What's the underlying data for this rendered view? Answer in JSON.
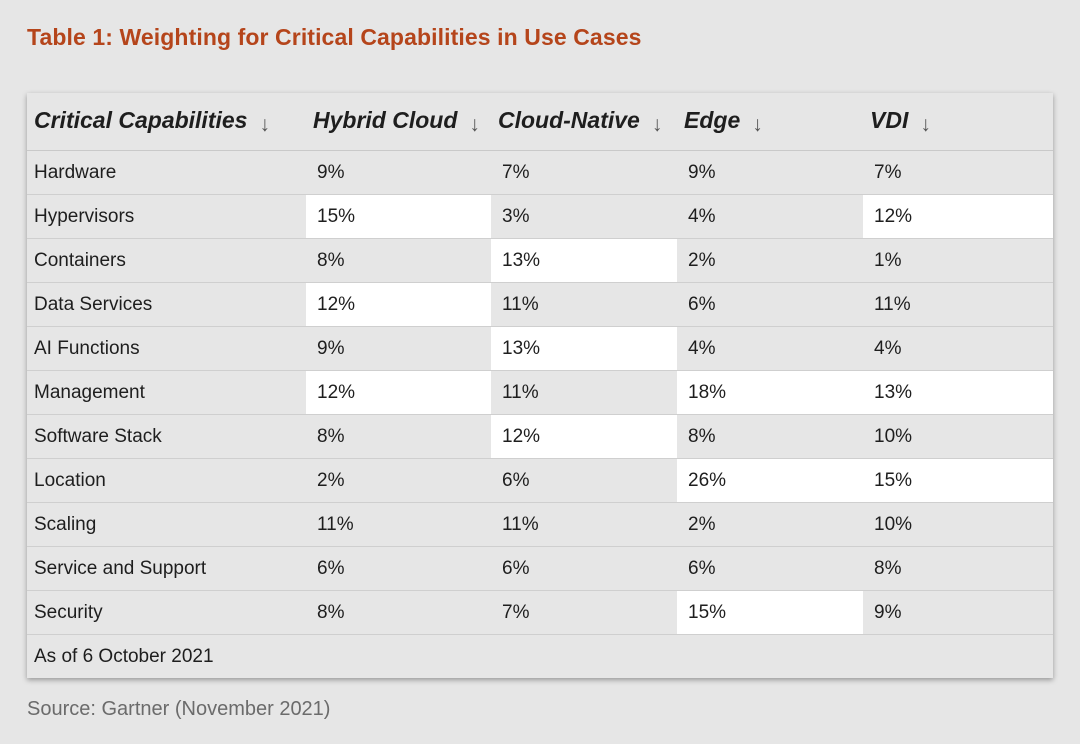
{
  "title": "Table 1: Weighting for Critical Capabilities in Use Cases",
  "colors": {
    "title": "#b5451b",
    "highlight_cell": "#ffffff",
    "row_background": "#e6e6e6"
  },
  "icons": {
    "sort": "arrow-down-icon"
  },
  "table": {
    "headers": [
      "Critical Capabilities",
      "Hybrid Cloud",
      "Cloud-Native",
      "Edge",
      "VDI"
    ],
    "rows": [
      {
        "cells": [
          "Hardware",
          "9%",
          "7%",
          "9%",
          "7%"
        ],
        "highlight": [
          false,
          false,
          false,
          false,
          false
        ]
      },
      {
        "cells": [
          "Hypervisors",
          "15%",
          "3%",
          "4%",
          "12%"
        ],
        "highlight": [
          false,
          true,
          false,
          false,
          true
        ]
      },
      {
        "cells": [
          "Containers",
          "8%",
          "13%",
          "2%",
          "1%"
        ],
        "highlight": [
          false,
          false,
          true,
          false,
          false
        ]
      },
      {
        "cells": [
          "Data Services",
          "12%",
          "11%",
          "6%",
          "11%"
        ],
        "highlight": [
          false,
          true,
          false,
          false,
          false
        ]
      },
      {
        "cells": [
          "AI Functions",
          "9%",
          "13%",
          "4%",
          "4%"
        ],
        "highlight": [
          false,
          false,
          true,
          false,
          false
        ]
      },
      {
        "cells": [
          "Management",
          "12%",
          "11%",
          "18%",
          "13%"
        ],
        "highlight": [
          false,
          true,
          false,
          true,
          true
        ]
      },
      {
        "cells": [
          "Software Stack",
          "8%",
          "12%",
          "8%",
          "10%"
        ],
        "highlight": [
          false,
          false,
          true,
          false,
          false
        ]
      },
      {
        "cells": [
          "Location",
          "2%",
          "6%",
          "26%",
          "15%"
        ],
        "highlight": [
          false,
          false,
          false,
          true,
          true
        ]
      },
      {
        "cells": [
          "Scaling",
          "11%",
          "11%",
          "2%",
          "10%"
        ],
        "highlight": [
          false,
          false,
          false,
          false,
          false
        ]
      },
      {
        "cells": [
          "Service and Support",
          "6%",
          "6%",
          "6%",
          "8%"
        ],
        "highlight": [
          false,
          false,
          false,
          false,
          false
        ]
      },
      {
        "cells": [
          "Security",
          "8%",
          "7%",
          "15%",
          "9%"
        ],
        "highlight": [
          false,
          false,
          false,
          true,
          false
        ]
      }
    ],
    "footer": "As of 6 October 2021"
  },
  "source": "Source: Gartner (November 2021)"
}
